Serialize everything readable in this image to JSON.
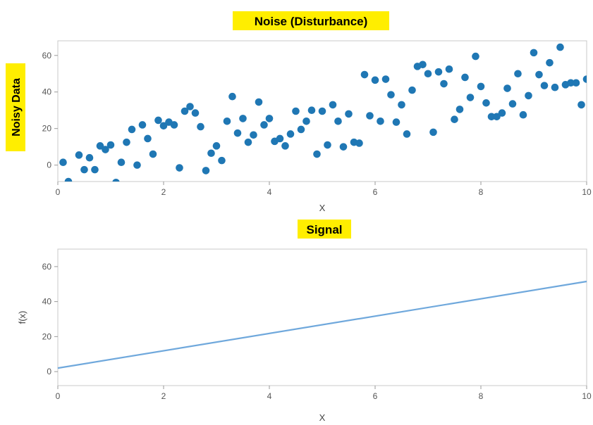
{
  "chart_data": [
    {
      "type": "scatter",
      "title": "Noise (Disturbance)",
      "xlabel": "X",
      "ylabel": "Noisy Data",
      "xlim": [
        0,
        10
      ],
      "ylim": [
        -9,
        68
      ],
      "xticks": [
        0,
        2,
        4,
        6,
        8,
        10
      ],
      "yticks": [
        0,
        20,
        40,
        60
      ],
      "grid": false,
      "title_highlight": "#ffee00",
      "ylabel_highlight": "#ffee00",
      "marker_color": "#1f77b4",
      "x": [
        0.1,
        0.2,
        0.4,
        0.5,
        0.6,
        0.7,
        0.8,
        0.9,
        1.0,
        1.1,
        1.2,
        1.3,
        1.4,
        1.5,
        1.6,
        1.7,
        1.8,
        1.9,
        2.0,
        2.1,
        2.2,
        2.3,
        2.4,
        2.5,
        2.6,
        2.7,
        2.8,
        2.9,
        3.0,
        3.1,
        3.2,
        3.3,
        3.4,
        3.5,
        3.6,
        3.7,
        3.8,
        3.9,
        4.0,
        4.1,
        4.2,
        4.3,
        4.4,
        4.5,
        4.6,
        4.7,
        4.8,
        4.9,
        5.0,
        5.1,
        5.2,
        5.3,
        5.4,
        5.5,
        5.6,
        5.7,
        5.8,
        5.9,
        6.0,
        6.1,
        6.2,
        6.3,
        6.4,
        6.5,
        6.6,
        6.7,
        6.8,
        6.9,
        7.0,
        7.1,
        7.2,
        7.3,
        7.4,
        7.5,
        7.6,
        7.7,
        7.8,
        7.9,
        8.0,
        8.1,
        8.2,
        8.3,
        8.4,
        8.5,
        8.6,
        8.7,
        8.8,
        8.9,
        9.0,
        9.1,
        9.2,
        9.3,
        9.4,
        9.5,
        9.6,
        9.7,
        9.8,
        9.9,
        10.0
      ],
      "y": [
        1.5,
        -9,
        5.5,
        -2.5,
        4,
        -2.5,
        10.5,
        8.5,
        11,
        -9.5,
        1.5,
        12.5,
        19.5,
        0,
        22,
        14.5,
        6,
        24.5,
        21.5,
        23.5,
        22,
        -1.5,
        29.5,
        32,
        28.5,
        21,
        -3,
        6.5,
        10.5,
        2.5,
        24,
        37.5,
        17.5,
        25.5,
        12.5,
        16.5,
        34.5,
        22,
        25.5,
        13,
        14.5,
        10.5,
        17,
        29.5,
        19.5,
        24,
        30,
        6,
        29.5,
        11,
        33,
        24,
        10,
        28,
        12.5,
        12,
        49.5,
        27,
        46.5,
        24,
        47,
        38.5,
        23.5,
        33,
        17,
        41,
        54,
        55,
        50,
        18,
        51,
        44.5,
        52.5,
        25,
        30.5,
        48,
        37,
        59.5,
        43,
        34,
        26.5,
        26.5,
        28.5,
        42,
        33.5,
        50,
        27.5,
        38,
        61.5,
        49.5,
        43.5,
        56,
        42.5,
        64.5,
        44,
        45,
        45,
        33,
        47
      ]
    },
    {
      "type": "line",
      "title": "Signal",
      "xlabel": "X",
      "ylabel": "f(x)",
      "xlim": [
        0,
        10
      ],
      "ylim": [
        -8,
        70
      ],
      "xticks": [
        0,
        2,
        4,
        6,
        8,
        10
      ],
      "yticks": [
        0,
        20,
        40,
        60
      ],
      "grid": false,
      "title_highlight": "#ffee00",
      "line_color": "#6fa8dc",
      "x": [
        0,
        10
      ],
      "y": [
        2,
        51.5
      ]
    }
  ]
}
